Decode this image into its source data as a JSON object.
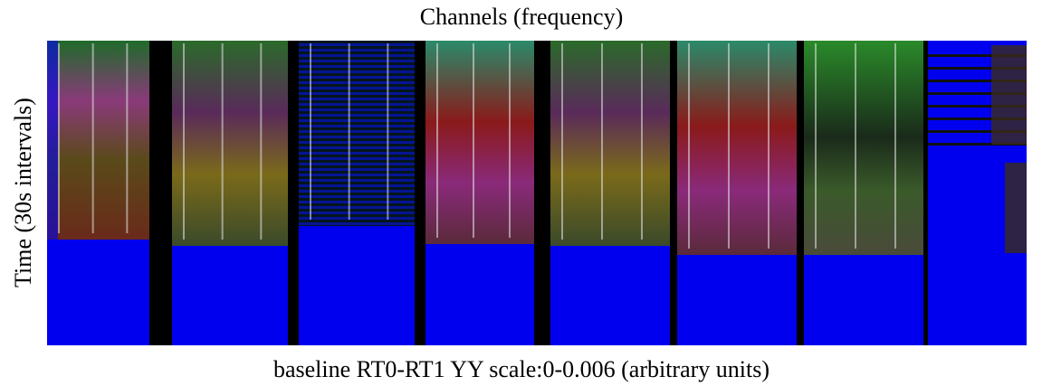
{
  "chart_data": {
    "type": "image",
    "title": "Channels (frequency)",
    "xlabel": "baseline RT0-RT1 YY scale:0-0.006 (arbitrary units)",
    "ylabel": "Time (30s intervals)"
  }
}
